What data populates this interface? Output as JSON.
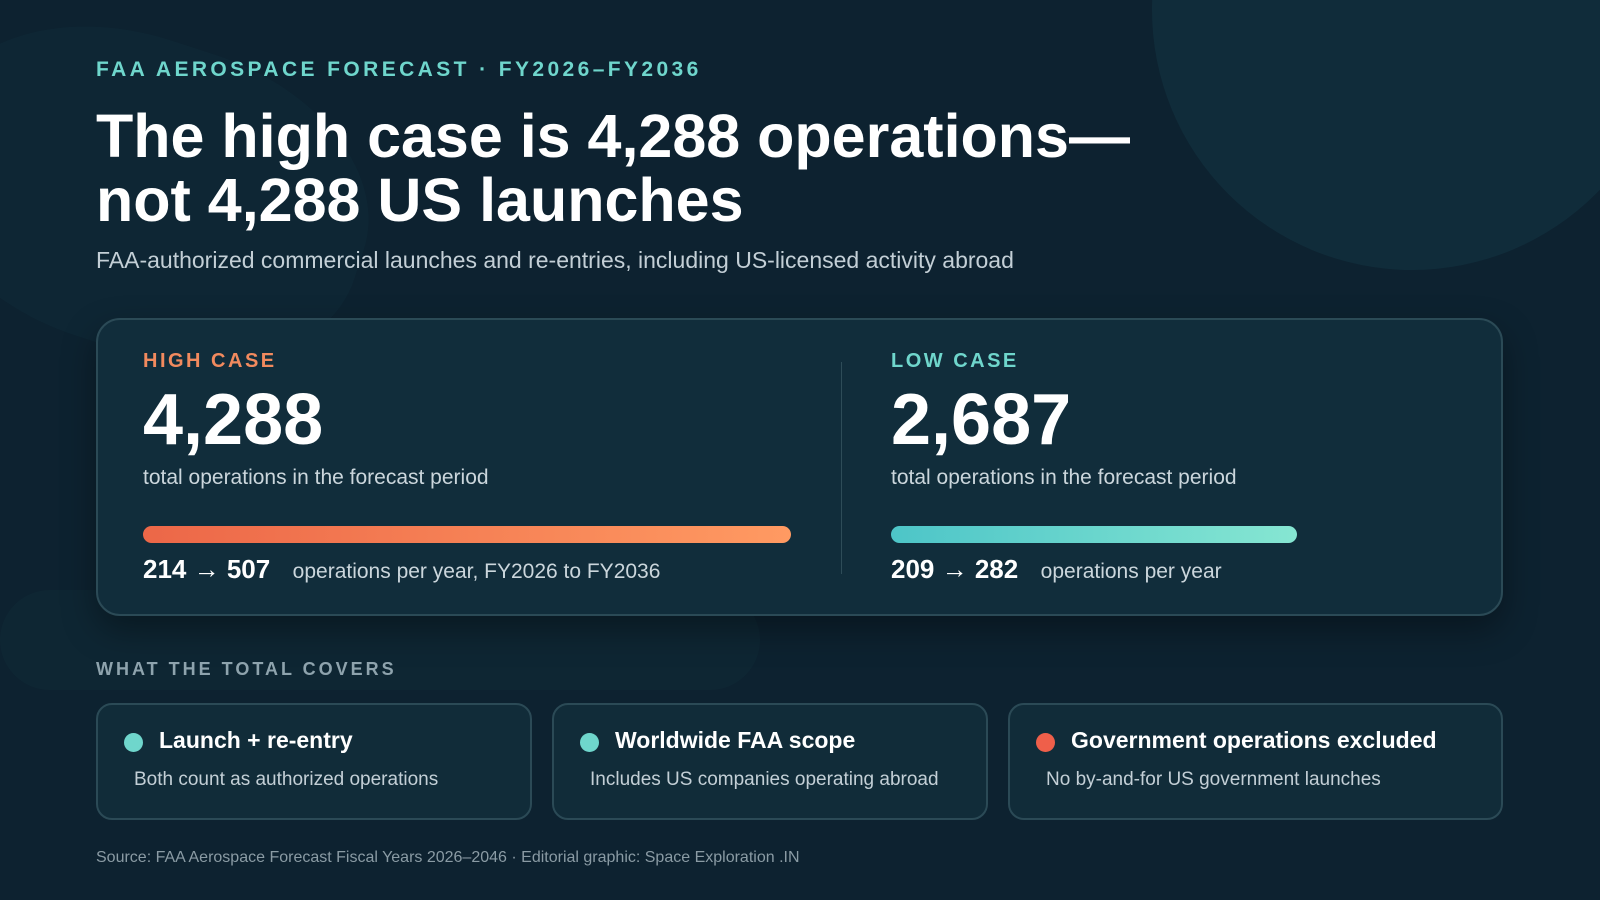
{
  "header": {
    "eyebrow": "FAA AEROSPACE FORECAST · FY2026–FY2036",
    "title_line1": "The high case is 4,288 operations—",
    "title_line2": "not 4,288 US launches",
    "subtitle": "FAA-authorized commercial launches and re-entries, including US-licensed activity abroad"
  },
  "cases": {
    "high": {
      "label": "HIGH CASE",
      "value": "4,288",
      "description": "total operations in the forecast period",
      "range": "214 → 507",
      "range_note": "operations per year, FY2026 to FY2036",
      "bar_fill_fraction": 1.0,
      "color_start": "#ec6748",
      "color_end": "#ff9a62"
    },
    "low": {
      "label": "LOW CASE",
      "value": "2,687",
      "description": "total operations in the forecast period",
      "range": "209 → 282",
      "range_note": "operations per year",
      "bar_fill_fraction": 0.627,
      "color_start": "#4dc5c8",
      "color_end": "#86e6d2"
    }
  },
  "coverage": {
    "section_label": "WHAT THE TOTAL COVERS",
    "items": [
      {
        "title": "Launch + re-entry",
        "description": "Both count as authorized operations",
        "dot_color": "#6fd6cc",
        "icon": "teal-dot-icon"
      },
      {
        "title": "Worldwide FAA scope",
        "description": "Includes US companies operating abroad",
        "dot_color": "#6fd6cc",
        "icon": "teal-dot-icon"
      },
      {
        "title": "Government operations excluded",
        "description": "No by-and-for US government launches",
        "dot_color": "#ef5f4a",
        "icon": "red-dot-icon"
      }
    ]
  },
  "footer": {
    "source": "Source: FAA Aerospace Forecast Fiscal Years 2026–2046 · Editorial graphic: Space Exploration .IN"
  }
}
